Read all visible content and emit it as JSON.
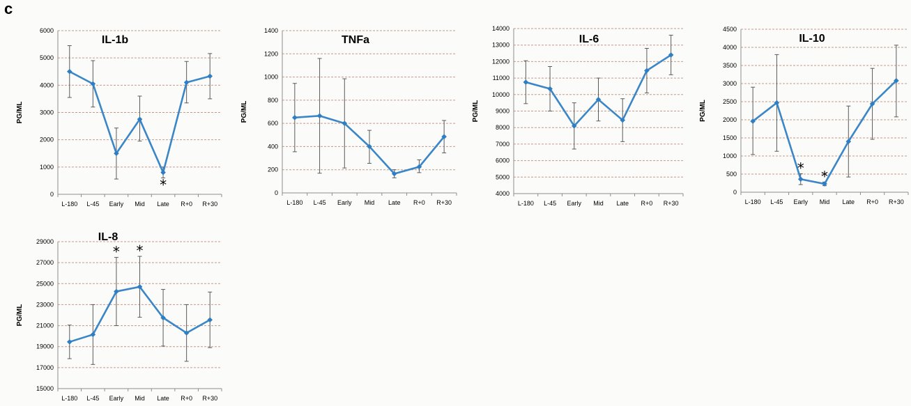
{
  "panel_label": "c",
  "chart_data": [
    {
      "type": "line",
      "title": "IL-1b",
      "ylabel": "PG/ML",
      "categories": [
        "L-180",
        "L-45",
        "Early",
        "Mid",
        "Late",
        "R+0",
        "R+30"
      ],
      "ylim": [
        0,
        6000
      ],
      "yticks": [
        0,
        1000,
        2000,
        3000,
        4000,
        5000,
        6000
      ],
      "values": [
        4500,
        4050,
        1500,
        2750,
        800,
        4100,
        4330
      ],
      "err_upper": [
        5450,
        4900,
        2430,
        3600,
        1000,
        4870,
        5160
      ],
      "err_lower": [
        3550,
        3200,
        560,
        1950,
        600,
        3350,
        3500
      ],
      "significant": [
        false,
        false,
        false,
        false,
        true,
        false,
        false
      ],
      "star_position": [
        "",
        "",
        "",
        "",
        "below",
        "",
        ""
      ],
      "color": "#3a86c6"
    },
    {
      "type": "line",
      "title": "TNFa",
      "ylabel": "PG/ML",
      "categories": [
        "L-180",
        "L-45",
        "Early",
        "Mid",
        "Late",
        "R+0",
        "R+30"
      ],
      "ylim": [
        0,
        1400
      ],
      "yticks": [
        0,
        200,
        400,
        600,
        800,
        1000,
        1200,
        1400
      ],
      "values": [
        650,
        665,
        600,
        400,
        165,
        225,
        485
      ],
      "err_upper": [
        945,
        1160,
        985,
        540,
        200,
        285,
        625
      ],
      "err_lower": [
        355,
        170,
        215,
        255,
        130,
        175,
        345
      ],
      "significant": [
        false,
        false,
        false,
        false,
        false,
        false,
        false
      ],
      "star_position": [
        "",
        "",
        "",
        "",
        "",
        "",
        ""
      ],
      "color": "#3a86c6"
    },
    {
      "type": "line",
      "title": "IL-6",
      "ylabel": "PG/ML",
      "categories": [
        "L-180",
        "L-45",
        "Early",
        "Mid",
        "Late",
        "R+0",
        "R+30"
      ],
      "ylim": [
        4000,
        14000
      ],
      "yticks": [
        4000,
        5000,
        6000,
        7000,
        8000,
        9000,
        10000,
        11000,
        12000,
        13000,
        14000
      ],
      "values": [
        10750,
        10350,
        8100,
        9700,
        8450,
        11450,
        12400
      ],
      "err_upper": [
        12050,
        11700,
        9500,
        11000,
        9750,
        12800,
        13600
      ],
      "err_lower": [
        9450,
        9000,
        6700,
        8400,
        7150,
        10100,
        11200
      ],
      "significant": [
        false,
        false,
        false,
        false,
        false,
        false,
        false
      ],
      "star_position": [
        "",
        "",
        "",
        "",
        "",
        "",
        ""
      ],
      "color": "#3a86c6"
    },
    {
      "type": "line",
      "title": "IL-10",
      "ylabel": "PG/ML",
      "categories": [
        "L-180",
        "L-45",
        "Early",
        "Mid",
        "Late",
        "R+0",
        "R+30"
      ],
      "ylim": [
        0,
        4500
      ],
      "yticks": [
        0,
        500,
        1000,
        1500,
        2000,
        2500,
        3000,
        3500,
        4000,
        4500
      ],
      "values": [
        1960,
        2470,
        360,
        230,
        1400,
        2440,
        3080
      ],
      "err_upper": [
        2900,
        3800,
        510,
        280,
        2380,
        3420,
        4060
      ],
      "err_lower": [
        1040,
        1130,
        210,
        180,
        420,
        1460,
        2080
      ],
      "significant": [
        false,
        false,
        true,
        true,
        false,
        false,
        false
      ],
      "star_position": [
        "",
        "",
        "above",
        "above",
        "",
        "",
        ""
      ],
      "color": "#3a86c6"
    },
    {
      "type": "line",
      "title": "IL-8",
      "ylabel": "PG/ML",
      "categories": [
        "L-180",
        "L-45",
        "Early",
        "Mid",
        "Late",
        "R+0",
        "R+30"
      ],
      "ylim": [
        15000,
        29000
      ],
      "yticks": [
        15000,
        17000,
        19000,
        21000,
        23000,
        25000,
        27000,
        29000
      ],
      "values": [
        19450,
        20150,
        24250,
        24700,
        21750,
        20300,
        21550
      ],
      "err_upper": [
        21050,
        23000,
        27500,
        27600,
        24450,
        23000,
        24200
      ],
      "err_lower": [
        17850,
        17300,
        21000,
        21800,
        19050,
        17600,
        18900
      ],
      "significant": [
        false,
        false,
        true,
        true,
        false,
        false,
        false
      ],
      "star_position": [
        "",
        "",
        "above",
        "above",
        "",
        "",
        ""
      ],
      "color": "#3a86c6"
    }
  ]
}
